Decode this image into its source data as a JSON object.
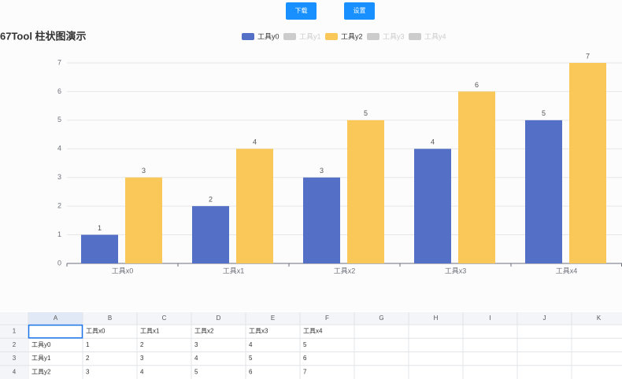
{
  "toolbar": {
    "buttons": [
      "下载",
      "设置"
    ]
  },
  "chart_data": {
    "type": "bar",
    "title": "67Tool 柱状图演示",
    "categories": [
      "工具x0",
      "工具x1",
      "工具x2",
      "工具x3",
      "工具x4"
    ],
    "legend": [
      {
        "name": "工具y0",
        "color": "#5470c6",
        "selected": true
      },
      {
        "name": "工具y1",
        "color": "#cccccc",
        "selected": false
      },
      {
        "name": "工具y2",
        "color": "#fac858",
        "selected": true
      },
      {
        "name": "工具y3",
        "color": "#cccccc",
        "selected": false
      },
      {
        "name": "工具y4",
        "color": "#cccccc",
        "selected": false
      }
    ],
    "series": [
      {
        "name": "工具y0",
        "color": "#5470c6",
        "values": [
          1,
          2,
          3,
          4,
          5
        ]
      },
      {
        "name": "工具y2",
        "color": "#fac858",
        "values": [
          3,
          4,
          5,
          6,
          7
        ]
      }
    ],
    "ylim": [
      0,
      7
    ],
    "yticks": [
      0,
      1,
      2,
      3,
      4,
      5,
      6,
      7
    ],
    "grid": true,
    "data_labels": true
  },
  "spreadsheet": {
    "columns": [
      "A",
      "B",
      "C",
      "D",
      "E",
      "F",
      "G",
      "H",
      "I",
      "J",
      "K"
    ],
    "row_numbers": [
      1,
      2,
      3,
      4
    ],
    "header_row": [
      "工具x0",
      "工具x1",
      "工具x2",
      "工具x3",
      "工具x4"
    ],
    "rows": [
      [
        "工具y0",
        1,
        2,
        3,
        4,
        5
      ],
      [
        "工具y1",
        2,
        3,
        4,
        5,
        6
      ],
      [
        "工具y2",
        3,
        4,
        5,
        6,
        7
      ]
    ]
  }
}
